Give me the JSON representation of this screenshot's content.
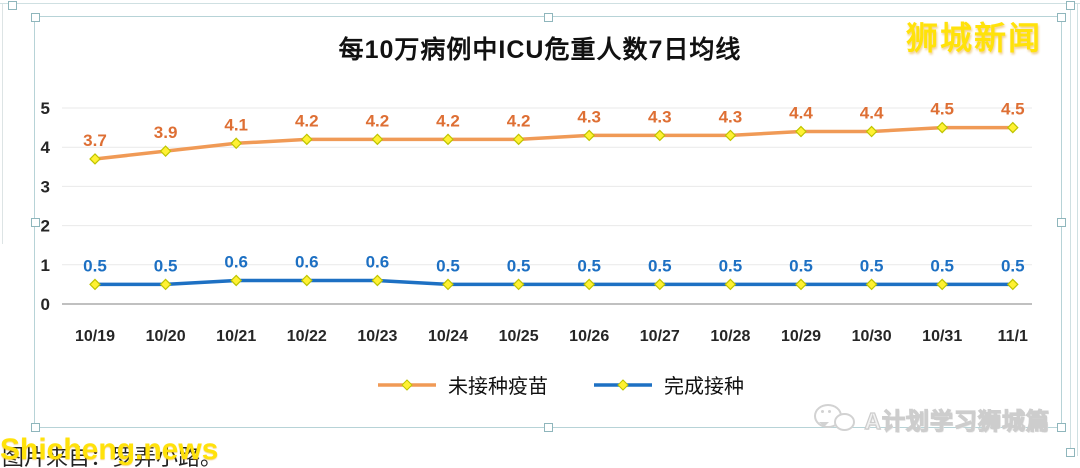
{
  "badge": {
    "label": "狮城新闻",
    "color": "#FFE20A"
  },
  "watermarks": {
    "site": "Shicheng.news",
    "caption": "图片来自：罗弄小路。",
    "channel": "A计划学习狮城篇"
  },
  "icons": {
    "channel_icon": "chat-bubbles-icon",
    "marker_icon": "diamond-marker"
  },
  "chart_data": {
    "type": "line",
    "title": "每10万病例中ICU危重人数7日均线",
    "categories": [
      "10/19",
      "10/20",
      "10/21",
      "10/22",
      "10/23",
      "10/24",
      "10/25",
      "10/26",
      "10/27",
      "10/28",
      "10/29",
      "10/30",
      "10/31",
      "11/1"
    ],
    "series": [
      {
        "name": "未接种疫苗",
        "color": "#F09A56",
        "label_color": "#DE6F34",
        "values": [
          3.7,
          3.9,
          4.1,
          4.2,
          4.2,
          4.2,
          4.2,
          4.3,
          4.3,
          4.3,
          4.4,
          4.4,
          4.5,
          4.5
        ]
      },
      {
        "name": "完成接种",
        "color": "#1D70C3",
        "label_color": "#1D70C3",
        "values": [
          0.5,
          0.5,
          0.6,
          0.6,
          0.6,
          0.5,
          0.5,
          0.5,
          0.5,
          0.5,
          0.5,
          0.5,
          0.5,
          0.5
        ]
      }
    ],
    "xlabel": "",
    "ylabel": "",
    "ylim": [
      0,
      5
    ],
    "yticks": [
      0,
      1,
      2,
      3,
      4,
      5
    ],
    "grid": true,
    "legend_position": "bottom",
    "marker": {
      "shape": "diamond",
      "fill": "#FFF133",
      "stroke": "#BEC400"
    },
    "colors": {
      "gridline": "#E9E9E9",
      "axis_line": "#ABABAB",
      "tick_text": "#262626"
    }
  }
}
